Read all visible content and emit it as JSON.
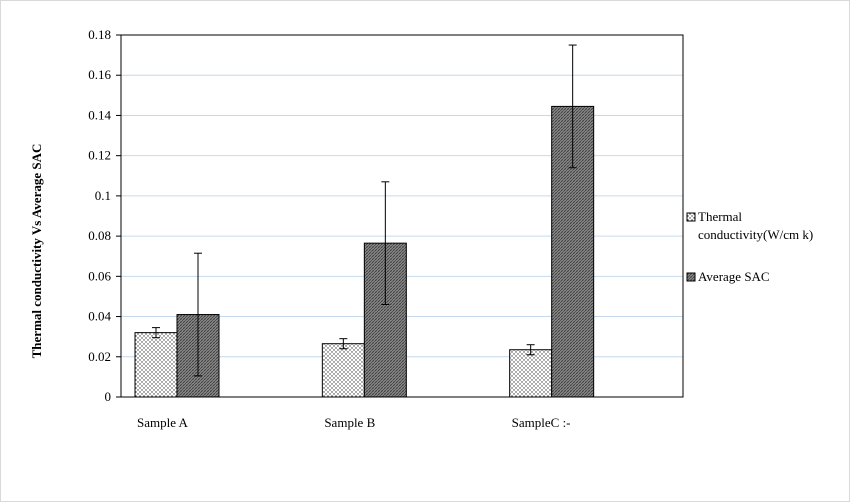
{
  "chart_data": {
    "type": "bar",
    "title": "",
    "xlabel": "",
    "ylabel": "Thermal conductivity  Vs Average SAC",
    "categories": [
      "Sample A",
      "Sample B",
      "SampleC :-"
    ],
    "ylim": [
      0,
      0.18
    ],
    "yticks": [
      "0",
      "0.02",
      "0.04",
      "0.06",
      "0.08",
      "0.1",
      "0.12",
      "0.14",
      "0.16",
      "0.18"
    ],
    "grid": true,
    "legend_position": "right",
    "series": [
      {
        "name": "Thermal conductivity(W/cm k)",
        "legend_lines": [
          "Thermal",
          "conductivity(W/cm k)"
        ],
        "values": [
          0.032,
          0.0265,
          0.0235
        ],
        "error": [
          0.0025,
          0.0025,
          0.0025
        ],
        "pattern": "dotted",
        "color": "#ffffff"
      },
      {
        "name": "Average SAC",
        "legend_lines": [
          "Average SAC"
        ],
        "values": [
          0.041,
          0.0765,
          0.1445
        ],
        "error": [
          0.0305,
          0.0305,
          0.0305
        ],
        "pattern": "dense-hatch",
        "color": "#7f7f7f"
      }
    ]
  }
}
